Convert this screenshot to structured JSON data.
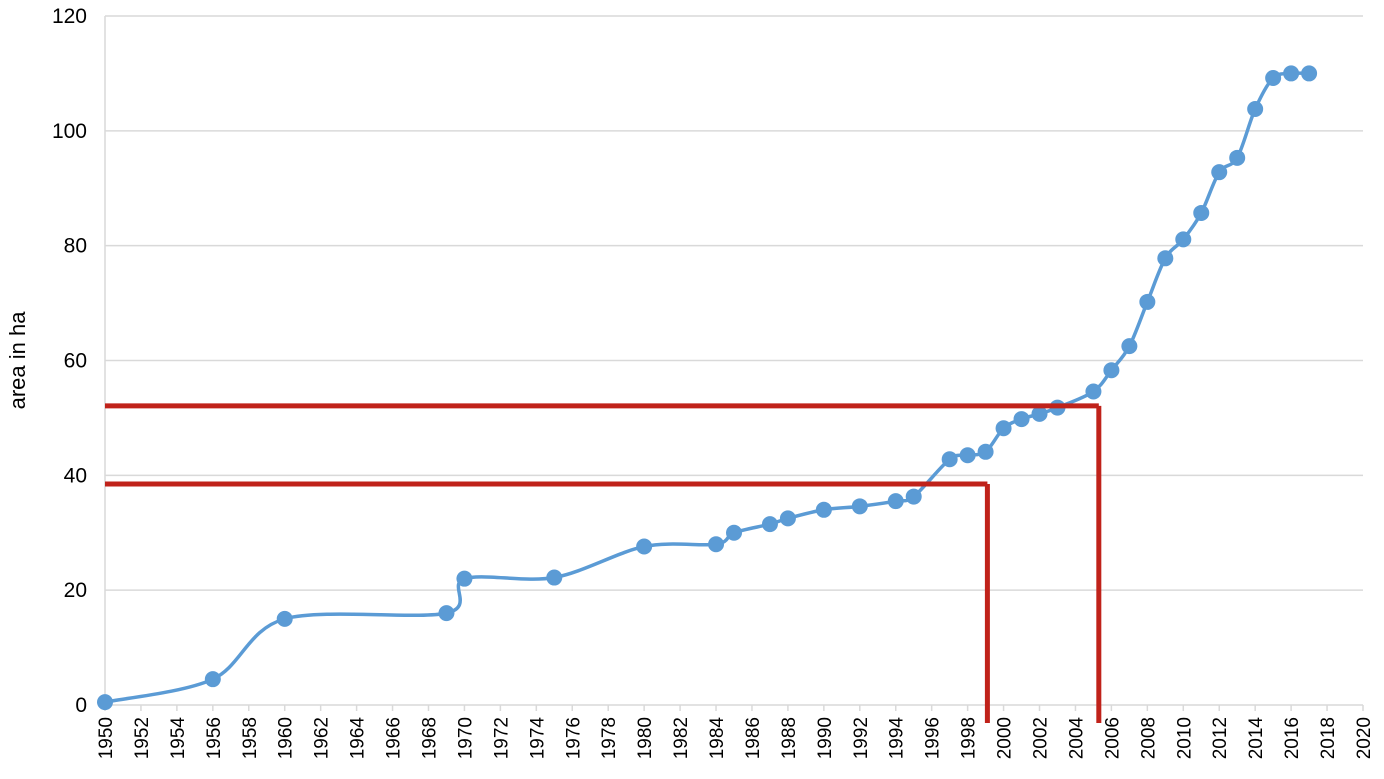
{
  "chart_data": {
    "type": "line",
    "title": "",
    "xlabel": "",
    "ylabel": "area in ha",
    "xlim": [
      1950,
      2020
    ],
    "ylim": [
      0,
      120
    ],
    "x_ticks": [
      1950,
      1952,
      1954,
      1956,
      1958,
      1960,
      1962,
      1964,
      1966,
      1968,
      1970,
      1972,
      1974,
      1976,
      1978,
      1980,
      1982,
      1984,
      1986,
      1988,
      1990,
      1992,
      1994,
      1996,
      1998,
      2000,
      2002,
      2004,
      2006,
      2008,
      2010,
      2012,
      2014,
      2016,
      2018,
      2020
    ],
    "y_ticks": [
      0,
      20,
      40,
      60,
      80,
      100,
      120
    ],
    "grid": "horizontal",
    "legend": "none",
    "series": [
      {
        "color": "#5b9bd5",
        "x": [
          1950,
          1956,
          1960,
          1969,
          1970,
          1975,
          1980,
          1984,
          1985,
          1987,
          1988,
          1990,
          1992,
          1994,
          1995,
          1997,
          1998,
          1999,
          2000,
          2001,
          2002,
          2003,
          2005,
          2006,
          2007,
          2008,
          2009,
          2010,
          2011,
          2012,
          2013,
          2014,
          2015,
          2016,
          2017
        ],
        "y": [
          0.5,
          4.5,
          15,
          16,
          22,
          22.2,
          27.6,
          28,
          30,
          31.5,
          32.5,
          34,
          34.6,
          35.5,
          36.3,
          42.8,
          43.5,
          44.1,
          48.2,
          49.8,
          50.7,
          51.8,
          54.6,
          58.3,
          62.5,
          70.2,
          77.8,
          81.1,
          85.7,
          92.8,
          95.3,
          103.8,
          109.2,
          110,
          110
        ]
      }
    ],
    "annotations": [
      {
        "type": "threshold-lines",
        "color": "#c0221a",
        "y": 38.5,
        "x": 1999.1
      },
      {
        "type": "threshold-lines",
        "color": "#c0221a",
        "y": 52.1,
        "x": 2005.3
      }
    ]
  }
}
